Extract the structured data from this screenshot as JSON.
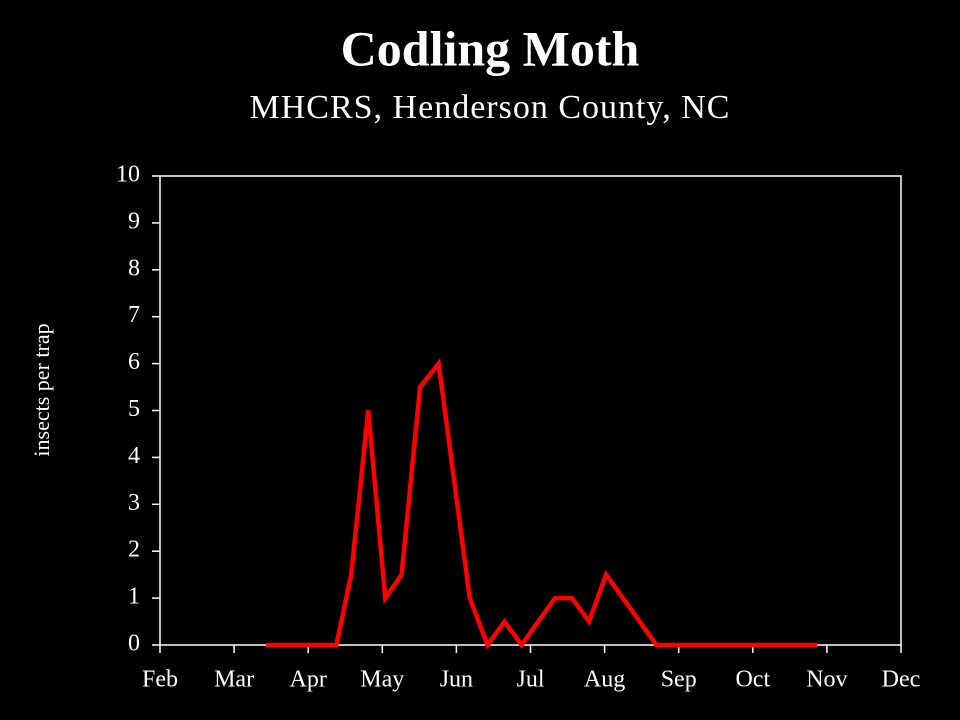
{
  "chart_data": {
    "type": "line",
    "title": "Codling Moth",
    "subtitle": "MHCRS, Henderson County, NC",
    "y_label": "insects per trap",
    "x": [
      3.43,
      4.38,
      4.58,
      4.81,
      5.04,
      5.26,
      5.51,
      5.76,
      6.18,
      6.42,
      6.65,
      6.88,
      7.33,
      7.56,
      7.79,
      8.02,
      8.7,
      10.87
    ],
    "series": [
      {
        "name": "Codling Moth",
        "color": "#ff0000",
        "values": [
          0,
          0,
          1.5,
          5,
          1,
          1.5,
          5.5,
          6,
          1,
          0,
          0.5,
          0,
          1,
          1,
          0.5,
          1.5,
          0,
          0
        ]
      }
    ],
    "xlim": [
      2,
      12
    ],
    "xticks": [
      {
        "value": 2,
        "label": "Feb"
      },
      {
        "value": 3,
        "label": "Mar"
      },
      {
        "value": 4,
        "label": "Apr"
      },
      {
        "value": 5,
        "label": "May"
      },
      {
        "value": 6,
        "label": "Jun"
      },
      {
        "value": 7,
        "label": "Jul"
      },
      {
        "value": 8,
        "label": "Aug"
      },
      {
        "value": 9,
        "label": "Sep"
      },
      {
        "value": 10,
        "label": "Oct"
      },
      {
        "value": 11,
        "label": "Nov"
      },
      {
        "value": 12,
        "label": "Dec"
      }
    ],
    "ylim": [
      0,
      10
    ],
    "yticks": [
      0,
      1,
      2,
      3,
      4,
      5,
      6,
      7,
      8,
      9,
      10
    ]
  }
}
